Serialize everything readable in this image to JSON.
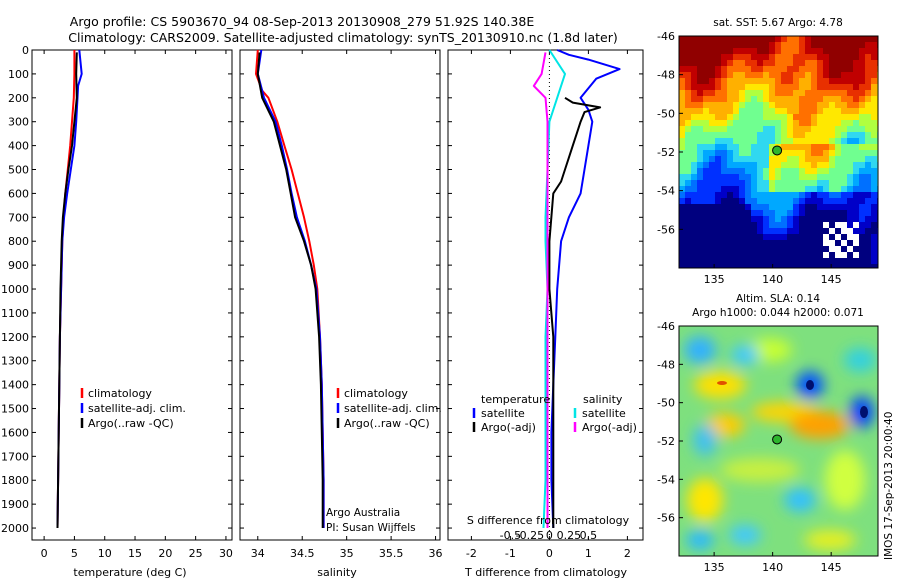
{
  "title": {
    "line1": "Argo profile: CS 5903670_94 08-Sep-2013 20130908_279 51.92S 140.38E",
    "line2": "Climatology: CARS2009. Satellite-adjusted climatology: synTS_20130910.nc (1.8d later)"
  },
  "footer_vertical": "IMOS 17-Sep-2013 20:00:40",
  "colors": {
    "climatology": "#ff0000",
    "satellite": "#0000ff",
    "argo": "#000000",
    "sat_s": "#00e5e5",
    "argo_s": "#ff00ff"
  },
  "chart_data": [
    {
      "type": "line",
      "id": "temperature_profile",
      "xlabel": "temperature (deg C)",
      "ylabel": "",
      "xlim": [
        -2,
        31
      ],
      "ylim": [
        2050,
        0
      ],
      "xticks": [
        0,
        5,
        10,
        15,
        20,
        25,
        30
      ],
      "xticklabels": [
        "0",
        "5",
        "10",
        "15",
        "20",
        "25",
        "30"
      ],
      "yticks": [
        0,
        100,
        200,
        300,
        400,
        500,
        600,
        700,
        800,
        900,
        1000,
        1100,
        1200,
        1300,
        1400,
        1500,
        1600,
        1700,
        1800,
        1900,
        2000
      ],
      "yticklabels": [
        "0",
        "100",
        "200",
        "300",
        "400",
        "500",
        "600",
        "700",
        "800",
        "900",
        "1000",
        "1100",
        "1200",
        "1300",
        "1400",
        "1500",
        "1600",
        "1700",
        "1800",
        "1900",
        "2000"
      ],
      "legend": [
        "climatology",
        "satellite-adj. clim.",
        "Argo(..raw -QC)"
      ],
      "legend_position": "lower-center",
      "series": [
        {
          "name": "climatology",
          "color": "#ff0000",
          "points": [
            [
              5.0,
              0
            ],
            [
              5.0,
              100
            ],
            [
              4.9,
              200
            ],
            [
              4.6,
              300
            ],
            [
              4.3,
              400
            ],
            [
              3.9,
              500
            ],
            [
              3.5,
              600
            ],
            [
              3.2,
              700
            ],
            [
              3.0,
              800
            ],
            [
              2.8,
              1000
            ],
            [
              2.6,
              1200
            ],
            [
              2.5,
              1400
            ],
            [
              2.4,
              1600
            ],
            [
              2.3,
              1800
            ],
            [
              2.2,
              2000
            ]
          ]
        },
        {
          "name": "satellite-adj. clim.",
          "color": "#0000ff",
          "points": [
            [
              5.8,
              0
            ],
            [
              6.0,
              50
            ],
            [
              6.2,
              100
            ],
            [
              5.6,
              150
            ],
            [
              5.5,
              200
            ],
            [
              5.3,
              300
            ],
            [
              5.0,
              400
            ],
            [
              4.4,
              500
            ],
            [
              3.8,
              600
            ],
            [
              3.3,
              700
            ],
            [
              3.0,
              800
            ],
            [
              2.8,
              1000
            ],
            [
              2.6,
              1200
            ],
            [
              2.5,
              1400
            ],
            [
              2.4,
              1600
            ],
            [
              2.3,
              1800
            ],
            [
              2.2,
              2000
            ]
          ]
        },
        {
          "name": "Argo(..raw -QC)",
          "color": "#000000",
          "points": [
            [
              5.4,
              10
            ],
            [
              5.3,
              100
            ],
            [
              5.4,
              200
            ],
            [
              5.0,
              300
            ],
            [
              4.6,
              400
            ],
            [
              4.0,
              500
            ],
            [
              3.5,
              600
            ],
            [
              3.1,
              700
            ],
            [
              2.9,
              800
            ],
            [
              2.7,
              1000
            ],
            [
              2.6,
              1200
            ],
            [
              2.5,
              1400
            ],
            [
              2.4,
              1600
            ],
            [
              2.3,
              1800
            ],
            [
              2.2,
              2000
            ]
          ]
        }
      ]
    },
    {
      "type": "line",
      "id": "salinity_profile",
      "xlabel": "salinity",
      "ylabel": "",
      "xlim": [
        33.8,
        36.05
      ],
      "ylim": [
        2050,
        0
      ],
      "xticks": [
        34,
        34.5,
        35,
        35.5,
        36
      ],
      "xticklabels": [
        "34",
        "34.5",
        "35",
        "35.5",
        "36"
      ],
      "legend": [
        "climatology",
        "satellite-adj. clim.",
        "Argo(..raw -QC)"
      ],
      "legend_position": "lower-center",
      "annotation": [
        "Argo Australia",
        "PI: Susan Wijffels"
      ],
      "series": [
        {
          "name": "climatology",
          "color": "#ff0000",
          "points": [
            [
              34.0,
              0
            ],
            [
              33.98,
              100
            ],
            [
              34.05,
              170
            ],
            [
              34.12,
              200
            ],
            [
              34.22,
              300
            ],
            [
              34.3,
              400
            ],
            [
              34.38,
              500
            ],
            [
              34.45,
              600
            ],
            [
              34.52,
              700
            ],
            [
              34.58,
              800
            ],
            [
              34.63,
              900
            ],
            [
              34.67,
              1000
            ],
            [
              34.7,
              1200
            ],
            [
              34.72,
              1400
            ],
            [
              34.73,
              1600
            ],
            [
              34.74,
              1800
            ],
            [
              34.74,
              2000
            ]
          ]
        },
        {
          "name": "satellite-adj. clim.",
          "color": "#0000ff",
          "points": [
            [
              34.04,
              0
            ],
            [
              34.0,
              100
            ],
            [
              34.07,
              200
            ],
            [
              34.2,
              300
            ],
            [
              34.27,
              400
            ],
            [
              34.33,
              500
            ],
            [
              34.38,
              600
            ],
            [
              34.44,
              700
            ],
            [
              34.53,
              800
            ],
            [
              34.6,
              900
            ],
            [
              34.66,
              1000
            ],
            [
              34.7,
              1200
            ],
            [
              34.72,
              1400
            ],
            [
              34.73,
              1600
            ],
            [
              34.74,
              1800
            ],
            [
              34.74,
              2000
            ]
          ]
        },
        {
          "name": "Argo(..raw -QC)",
          "color": "#000000",
          "points": [
            [
              34.02,
              10
            ],
            [
              34.0,
              100
            ],
            [
              34.05,
              200
            ],
            [
              34.18,
              300
            ],
            [
              34.25,
              400
            ],
            [
              34.32,
              500
            ],
            [
              34.37,
              600
            ],
            [
              34.42,
              700
            ],
            [
              34.52,
              800
            ],
            [
              34.6,
              900
            ],
            [
              34.65,
              1000
            ],
            [
              34.69,
              1200
            ],
            [
              34.71,
              1400
            ],
            [
              34.72,
              1600
            ],
            [
              34.73,
              1800
            ],
            [
              34.73,
              2000
            ]
          ]
        }
      ]
    },
    {
      "type": "line",
      "id": "difference_profile",
      "xlabel": "T difference from climatology",
      "xlabel_top": "S difference from climatology",
      "ylabel": "",
      "xlim": [
        -2.6,
        2.4
      ],
      "ylim": [
        2050,
        0
      ],
      "xticks": [
        -2,
        -1,
        0,
        1,
        2
      ],
      "xticklabels": [
        "-2",
        "-1",
        "0",
        "1",
        "2"
      ],
      "sxticks": [
        -1,
        -0.5,
        0,
        0.5,
        1
      ],
      "sxticklabels": [
        "-0.5",
        "-0.25",
        "0",
        "0.25",
        "0.5"
      ],
      "legend_headers": [
        "temperature",
        "salinity"
      ],
      "legend": [
        "satellite",
        "Argo(-adj)",
        "satellite",
        "Argo(-adj)"
      ],
      "legend_position": "lower-center",
      "series": [
        {
          "name": "satellite",
          "variable": "temperature",
          "color": "#0000ff",
          "points": [
            [
              0.2,
              0
            ],
            [
              0.5,
              20
            ],
            [
              1.0,
              40
            ],
            [
              1.8,
              80
            ],
            [
              1.2,
              120
            ],
            [
              0.8,
              200
            ],
            [
              1.0,
              250
            ],
            [
              1.1,
              300
            ],
            [
              1.0,
              400
            ],
            [
              0.9,
              500
            ],
            [
              0.8,
              600
            ],
            [
              0.5,
              700
            ],
            [
              0.3,
              800
            ],
            [
              0.2,
              1000
            ],
            [
              0.15,
              1200
            ],
            [
              0.1,
              1400
            ],
            [
              0.05,
              1600
            ],
            [
              0.05,
              1800
            ],
            [
              0.1,
              2000
            ]
          ]
        },
        {
          "name": "Argo(-adj)",
          "variable": "temperature",
          "color": "#000000",
          "points": [
            [
              0.4,
              200
            ],
            [
              0.6,
              220
            ],
            [
              1.3,
              240
            ],
            [
              0.9,
              260
            ],
            [
              0.8,
              300
            ],
            [
              0.7,
              350
            ],
            [
              0.6,
              400
            ],
            [
              0.5,
              450
            ],
            [
              0.4,
              500
            ],
            [
              0.3,
              550
            ],
            [
              0.1,
              600
            ],
            [
              0.0,
              800
            ],
            [
              0.0,
              1000
            ],
            [
              0.1,
              1200
            ],
            [
              0.1,
              1500
            ],
            [
              0.1,
              1800
            ],
            [
              0.1,
              2000
            ]
          ]
        },
        {
          "name": "satellite",
          "variable": "salinity",
          "color": "#00e5e5",
          "points": [
            [
              0.0,
              0
            ],
            [
              0.4,
              100
            ],
            [
              0.2,
              200
            ],
            [
              0.0,
              300
            ],
            [
              -0.05,
              500
            ],
            [
              -0.1,
              700
            ],
            [
              -0.1,
              800
            ],
            [
              -0.05,
              1000
            ],
            [
              -0.1,
              1200
            ],
            [
              -0.1,
              1400
            ],
            [
              -0.1,
              1600
            ],
            [
              -0.1,
              1800
            ],
            [
              -0.15,
              2000
            ]
          ]
        },
        {
          "name": "Argo(-adj)",
          "variable": "salinity",
          "color": "#ff00ff",
          "points": [
            [
              -0.1,
              10
            ],
            [
              -0.2,
              100
            ],
            [
              -0.4,
              150
            ],
            [
              -0.1,
              200
            ],
            [
              -0.05,
              300
            ],
            [
              -0.05,
              500
            ],
            [
              -0.05,
              700
            ],
            [
              -0.05,
              1000
            ],
            [
              -0.05,
              1500
            ],
            [
              -0.05,
              2000
            ]
          ]
        }
      ]
    },
    {
      "type": "heatmap",
      "id": "sst_map",
      "title": "sat. SST: 5.67  Argo: 4.78",
      "xlim": [
        132,
        149
      ],
      "ylim": [
        -58,
        -46
      ],
      "xticks": [
        135,
        140,
        145
      ],
      "xticklabels": [
        "135",
        "140",
        "145"
      ],
      "yticks": [
        -46,
        -48,
        -50,
        -52,
        -54,
        -56
      ],
      "yticklabels": [
        "-46",
        "-48",
        "-50",
        "-52",
        "-54",
        "-56"
      ],
      "marker": {
        "lon": 140.38,
        "lat": -51.92
      }
    },
    {
      "type": "heatmap",
      "id": "sla_map",
      "title": "Altim. SLA: 0.14",
      "subtitle": "Argo h1000: 0.044  h2000: 0.071",
      "xlim": [
        132,
        149
      ],
      "ylim": [
        -58,
        -46
      ],
      "xticks": [
        135,
        140,
        145
      ],
      "xticklabels": [
        "135",
        "140",
        "145"
      ],
      "yticks": [
        -46,
        -48,
        -50,
        -52,
        -54,
        -56
      ],
      "yticklabels": [
        "-46",
        "-48",
        "-50",
        "-52",
        "-54",
        "-56"
      ],
      "marker": {
        "lon": 140.38,
        "lat": -51.92
      }
    }
  ]
}
